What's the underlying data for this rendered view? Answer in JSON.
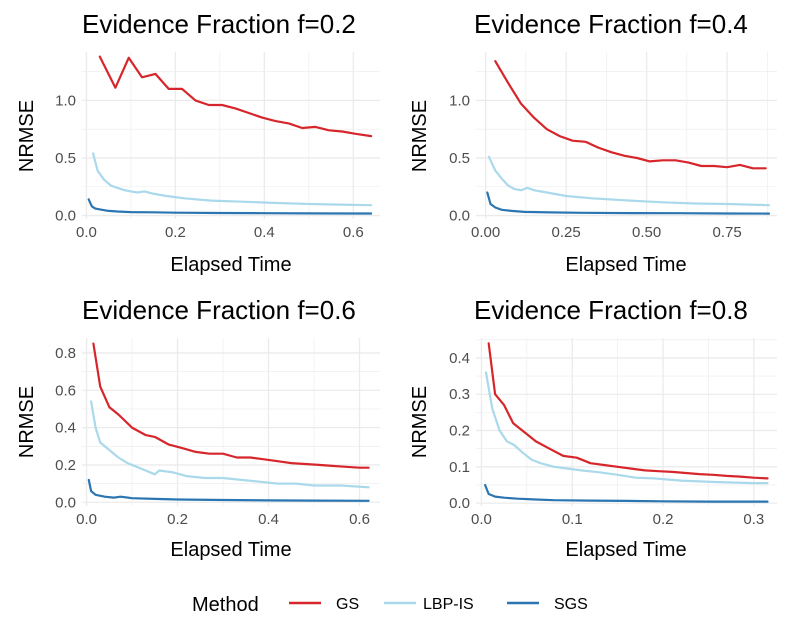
{
  "chart_data": [
    {
      "type": "line",
      "title": "Evidence Fraction f=0.2",
      "xlabel": "Elapsed Time",
      "ylabel": "NRMSE",
      "xlim": [
        -0.01,
        0.66
      ],
      "ylim": [
        -0.03,
        1.42
      ],
      "x_ticks": [
        0.0,
        0.2,
        0.4,
        0.6
      ],
      "x_tick_labels": [
        "0.0",
        "0.2",
        "0.4",
        "0.6"
      ],
      "y_ticks": [
        0.0,
        0.5,
        1.0
      ],
      "y_tick_labels": [
        "0.0",
        "0.5",
        "1.0"
      ],
      "series": [
        {
          "name": "GS",
          "x": [
            0.03,
            0.065,
            0.095,
            0.125,
            0.155,
            0.185,
            0.215,
            0.245,
            0.275,
            0.305,
            0.335,
            0.365,
            0.395,
            0.425,
            0.455,
            0.485,
            0.515,
            0.545,
            0.575,
            0.605,
            0.64
          ],
          "y": [
            1.38,
            1.11,
            1.37,
            1.2,
            1.23,
            1.1,
            1.1,
            1.0,
            0.96,
            0.96,
            0.93,
            0.89,
            0.85,
            0.82,
            0.8,
            0.76,
            0.77,
            0.74,
            0.73,
            0.71,
            0.69
          ]
        },
        {
          "name": "LBP-IS",
          "x": [
            0.015,
            0.025,
            0.04,
            0.055,
            0.07,
            0.085,
            0.1,
            0.115,
            0.13,
            0.15,
            0.18,
            0.22,
            0.28,
            0.35,
            0.42,
            0.5,
            0.57,
            0.64
          ],
          "y": [
            0.54,
            0.39,
            0.31,
            0.26,
            0.24,
            0.22,
            0.21,
            0.2,
            0.21,
            0.19,
            0.17,
            0.15,
            0.13,
            0.12,
            0.11,
            0.1,
            0.095,
            0.09
          ]
        },
        {
          "name": "SGS",
          "x": [
            0.005,
            0.012,
            0.02,
            0.035,
            0.05,
            0.07,
            0.1,
            0.15,
            0.2,
            0.3,
            0.4,
            0.5,
            0.6,
            0.64
          ],
          "y": [
            0.14,
            0.08,
            0.06,
            0.05,
            0.04,
            0.035,
            0.03,
            0.028,
            0.025,
            0.022,
            0.02,
            0.019,
            0.018,
            0.018
          ]
        }
      ]
    },
    {
      "type": "line",
      "title": "Evidence Fraction f=0.4",
      "xlabel": "Elapsed Time",
      "ylabel": "NRMSE",
      "xlim": [
        -0.03,
        0.905
      ],
      "ylim": [
        -0.03,
        1.42
      ],
      "x_ticks": [
        0.0,
        0.25,
        0.5,
        0.75
      ],
      "x_tick_labels": [
        "0.00",
        "0.25",
        "0.50",
        "0.75"
      ],
      "y_ticks": [
        0.0,
        0.5,
        1.0
      ],
      "y_tick_labels": [
        "0.0",
        "0.5",
        "1.0"
      ],
      "series": [
        {
          "name": "GS",
          "x": [
            0.03,
            0.07,
            0.11,
            0.15,
            0.19,
            0.23,
            0.27,
            0.31,
            0.35,
            0.39,
            0.43,
            0.47,
            0.51,
            0.55,
            0.59,
            0.63,
            0.67,
            0.71,
            0.75,
            0.79,
            0.83,
            0.87
          ],
          "y": [
            1.34,
            1.15,
            0.97,
            0.85,
            0.75,
            0.69,
            0.65,
            0.64,
            0.59,
            0.55,
            0.52,
            0.5,
            0.47,
            0.48,
            0.48,
            0.46,
            0.43,
            0.43,
            0.42,
            0.44,
            0.41,
            0.41
          ]
        },
        {
          "name": "LBP-IS",
          "x": [
            0.01,
            0.03,
            0.05,
            0.07,
            0.09,
            0.11,
            0.13,
            0.15,
            0.19,
            0.25,
            0.33,
            0.45,
            0.55,
            0.65,
            0.75,
            0.88
          ],
          "y": [
            0.51,
            0.39,
            0.32,
            0.26,
            0.23,
            0.22,
            0.24,
            0.22,
            0.2,
            0.17,
            0.15,
            0.13,
            0.115,
            0.105,
            0.1,
            0.09
          ]
        },
        {
          "name": "SGS",
          "x": [
            0.005,
            0.015,
            0.03,
            0.05,
            0.08,
            0.12,
            0.2,
            0.3,
            0.45,
            0.6,
            0.75,
            0.88
          ],
          "y": [
            0.2,
            0.1,
            0.07,
            0.05,
            0.04,
            0.032,
            0.027,
            0.024,
            0.021,
            0.02,
            0.018,
            0.017
          ]
        }
      ]
    },
    {
      "type": "line",
      "title": "Evidence Fraction f=0.6",
      "xlabel": "Elapsed Time",
      "ylabel": "NRMSE",
      "xlim": [
        -0.01,
        0.645
      ],
      "ylim": [
        -0.02,
        0.88
      ],
      "x_ticks": [
        0.0,
        0.2,
        0.4,
        0.6
      ],
      "x_tick_labels": [
        "0.0",
        "0.2",
        "0.4",
        "0.6"
      ],
      "y_ticks": [
        0.0,
        0.2,
        0.4,
        0.6,
        0.8
      ],
      "y_tick_labels": [
        "0.0",
        "0.2",
        "0.4",
        "0.6",
        "0.8"
      ],
      "series": [
        {
          "name": "GS",
          "x": [
            0.015,
            0.03,
            0.05,
            0.07,
            0.1,
            0.13,
            0.15,
            0.18,
            0.21,
            0.24,
            0.27,
            0.3,
            0.33,
            0.36,
            0.39,
            0.42,
            0.45,
            0.48,
            0.51,
            0.54,
            0.57,
            0.6,
            0.62
          ],
          "y": [
            0.85,
            0.62,
            0.51,
            0.47,
            0.4,
            0.36,
            0.35,
            0.31,
            0.29,
            0.27,
            0.26,
            0.26,
            0.24,
            0.24,
            0.23,
            0.22,
            0.21,
            0.205,
            0.2,
            0.195,
            0.19,
            0.185,
            0.185
          ]
        },
        {
          "name": "LBP-IS",
          "x": [
            0.01,
            0.02,
            0.03,
            0.05,
            0.07,
            0.09,
            0.11,
            0.13,
            0.15,
            0.16,
            0.19,
            0.22,
            0.26,
            0.3,
            0.34,
            0.38,
            0.42,
            0.46,
            0.5,
            0.56,
            0.62
          ],
          "y": [
            0.54,
            0.4,
            0.32,
            0.28,
            0.24,
            0.21,
            0.19,
            0.17,
            0.15,
            0.17,
            0.16,
            0.14,
            0.13,
            0.13,
            0.12,
            0.11,
            0.1,
            0.1,
            0.09,
            0.09,
            0.08
          ]
        },
        {
          "name": "SGS",
          "x": [
            0.005,
            0.01,
            0.02,
            0.04,
            0.06,
            0.075,
            0.1,
            0.15,
            0.2,
            0.3,
            0.4,
            0.5,
            0.62
          ],
          "y": [
            0.12,
            0.06,
            0.04,
            0.03,
            0.025,
            0.03,
            0.022,
            0.018,
            0.015,
            0.012,
            0.01,
            0.009,
            0.008
          ]
        }
      ]
    },
    {
      "type": "line",
      "title": "Evidence Fraction f=0.8",
      "xlabel": "Elapsed Time",
      "ylabel": "NRMSE",
      "xlim": [
        -0.006,
        0.3255
      ],
      "ylim": [
        -0.008,
        0.455
      ],
      "x_ticks": [
        0.0,
        0.1,
        0.2,
        0.3
      ],
      "x_tick_labels": [
        "0.0",
        "0.1",
        "0.2",
        "0.3"
      ],
      "y_ticks": [
        0.0,
        0.1,
        0.2,
        0.3,
        0.4
      ],
      "y_tick_labels": [
        "0.0",
        "0.1",
        "0.2",
        "0.3",
        "0.4"
      ],
      "series": [
        {
          "name": "GS",
          "x": [
            0.008,
            0.015,
            0.025,
            0.035,
            0.045,
            0.06,
            0.075,
            0.09,
            0.105,
            0.12,
            0.135,
            0.15,
            0.165,
            0.18,
            0.195,
            0.21,
            0.225,
            0.24,
            0.255,
            0.27,
            0.285,
            0.3,
            0.315
          ],
          "y": [
            0.44,
            0.3,
            0.27,
            0.22,
            0.2,
            0.17,
            0.15,
            0.13,
            0.125,
            0.11,
            0.105,
            0.1,
            0.095,
            0.09,
            0.088,
            0.086,
            0.083,
            0.08,
            0.078,
            0.075,
            0.073,
            0.07,
            0.068
          ]
        },
        {
          "name": "LBP-IS",
          "x": [
            0.005,
            0.012,
            0.02,
            0.028,
            0.036,
            0.045,
            0.055,
            0.065,
            0.08,
            0.095,
            0.11,
            0.13,
            0.15,
            0.17,
            0.19,
            0.22,
            0.26,
            0.3,
            0.315
          ],
          "y": [
            0.36,
            0.26,
            0.2,
            0.17,
            0.16,
            0.14,
            0.12,
            0.11,
            0.1,
            0.095,
            0.09,
            0.085,
            0.078,
            0.07,
            0.068,
            0.062,
            0.058,
            0.055,
            0.055
          ]
        },
        {
          "name": "SGS",
          "x": [
            0.004,
            0.008,
            0.015,
            0.025,
            0.04,
            0.06,
            0.08,
            0.12,
            0.16,
            0.2,
            0.25,
            0.3,
            0.315
          ],
          "y": [
            0.05,
            0.025,
            0.018,
            0.015,
            0.012,
            0.01,
            0.008,
            0.007,
            0.006,
            0.005,
            0.004,
            0.004,
            0.004
          ]
        }
      ]
    }
  ],
  "legend": {
    "title": "Method",
    "items": [
      {
        "label": "GS",
        "color": "#d7262b"
      },
      {
        "label": "LBP-IS",
        "color": "#a9d9eb"
      },
      {
        "label": "SGS",
        "color": "#2b76b2"
      }
    ]
  },
  "colors": {
    "GS": "#d7262b",
    "LBP-IS": "#a9d9eb",
    "SGS": "#2b76b2",
    "grid": "#ebebeb"
  }
}
